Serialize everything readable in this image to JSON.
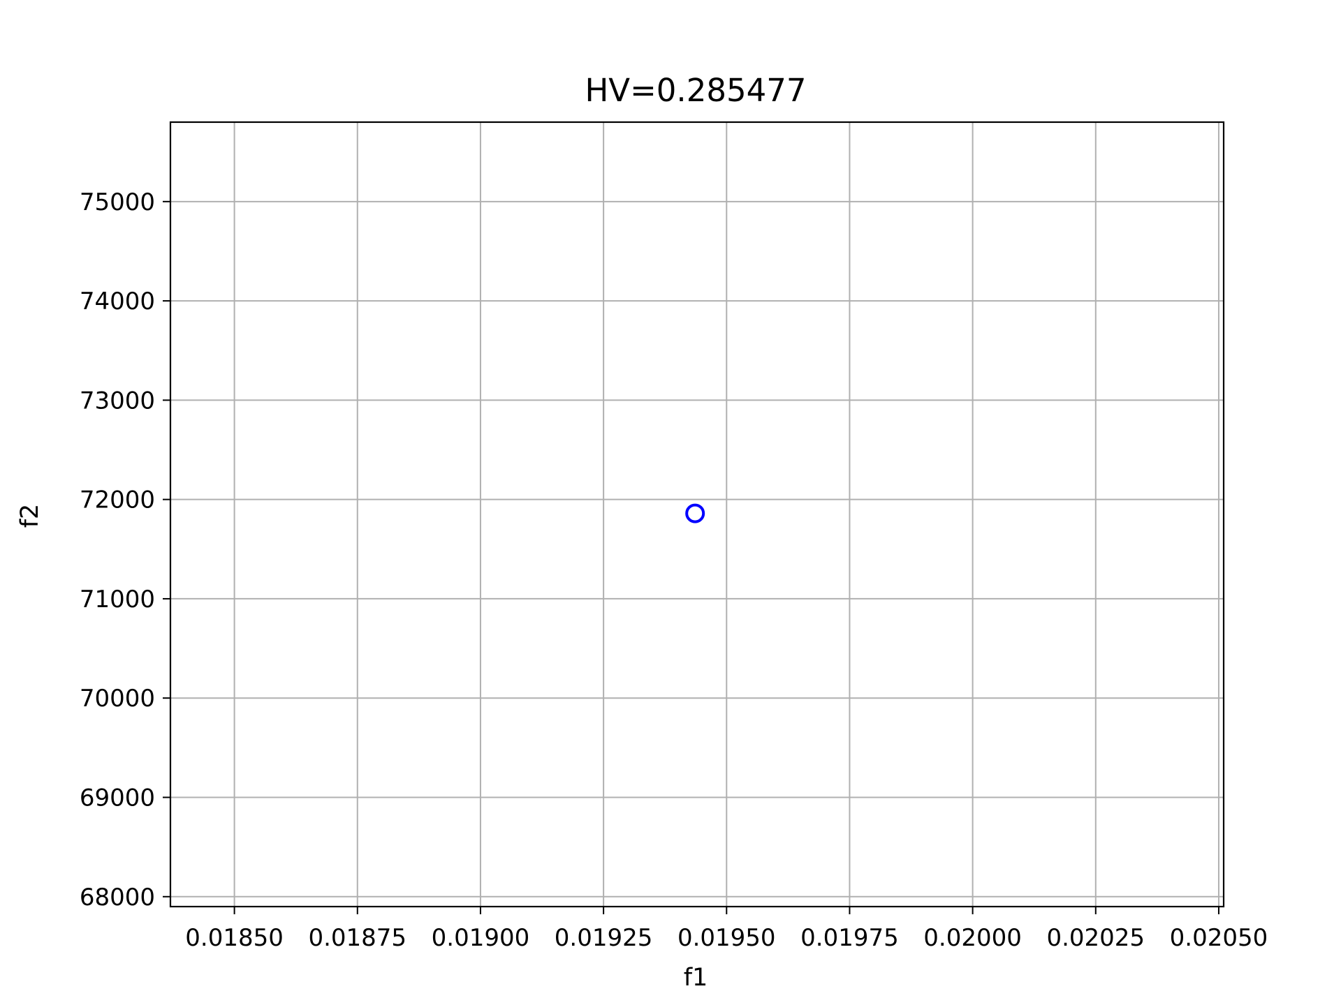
{
  "chart_data": {
    "type": "scatter",
    "title": "HV=0.285477",
    "xlabel": "f1",
    "ylabel": "f2",
    "xlim": [
      0.01837,
      0.02051
    ],
    "ylim": [
      67900,
      75800
    ],
    "xticks": [
      0.0185,
      0.01875,
      0.019,
      0.01925,
      0.0195,
      0.01975,
      0.02,
      0.02025,
      0.0205
    ],
    "xtick_labels": [
      "0.01850",
      "0.01875",
      "0.01900",
      "0.01925",
      "0.01950",
      "0.01975",
      "0.02000",
      "0.02025",
      "0.02050"
    ],
    "yticks": [
      68000,
      69000,
      70000,
      71000,
      72000,
      73000,
      74000,
      75000
    ],
    "ytick_labels": [
      "68000",
      "69000",
      "70000",
      "71000",
      "72000",
      "73000",
      "74000",
      "75000"
    ],
    "grid": true,
    "series": [
      {
        "marker": "hollow-circle",
        "color": "#0000ff",
        "points": [
          {
            "x": 0.019436,
            "y": 71860
          }
        ]
      }
    ]
  }
}
